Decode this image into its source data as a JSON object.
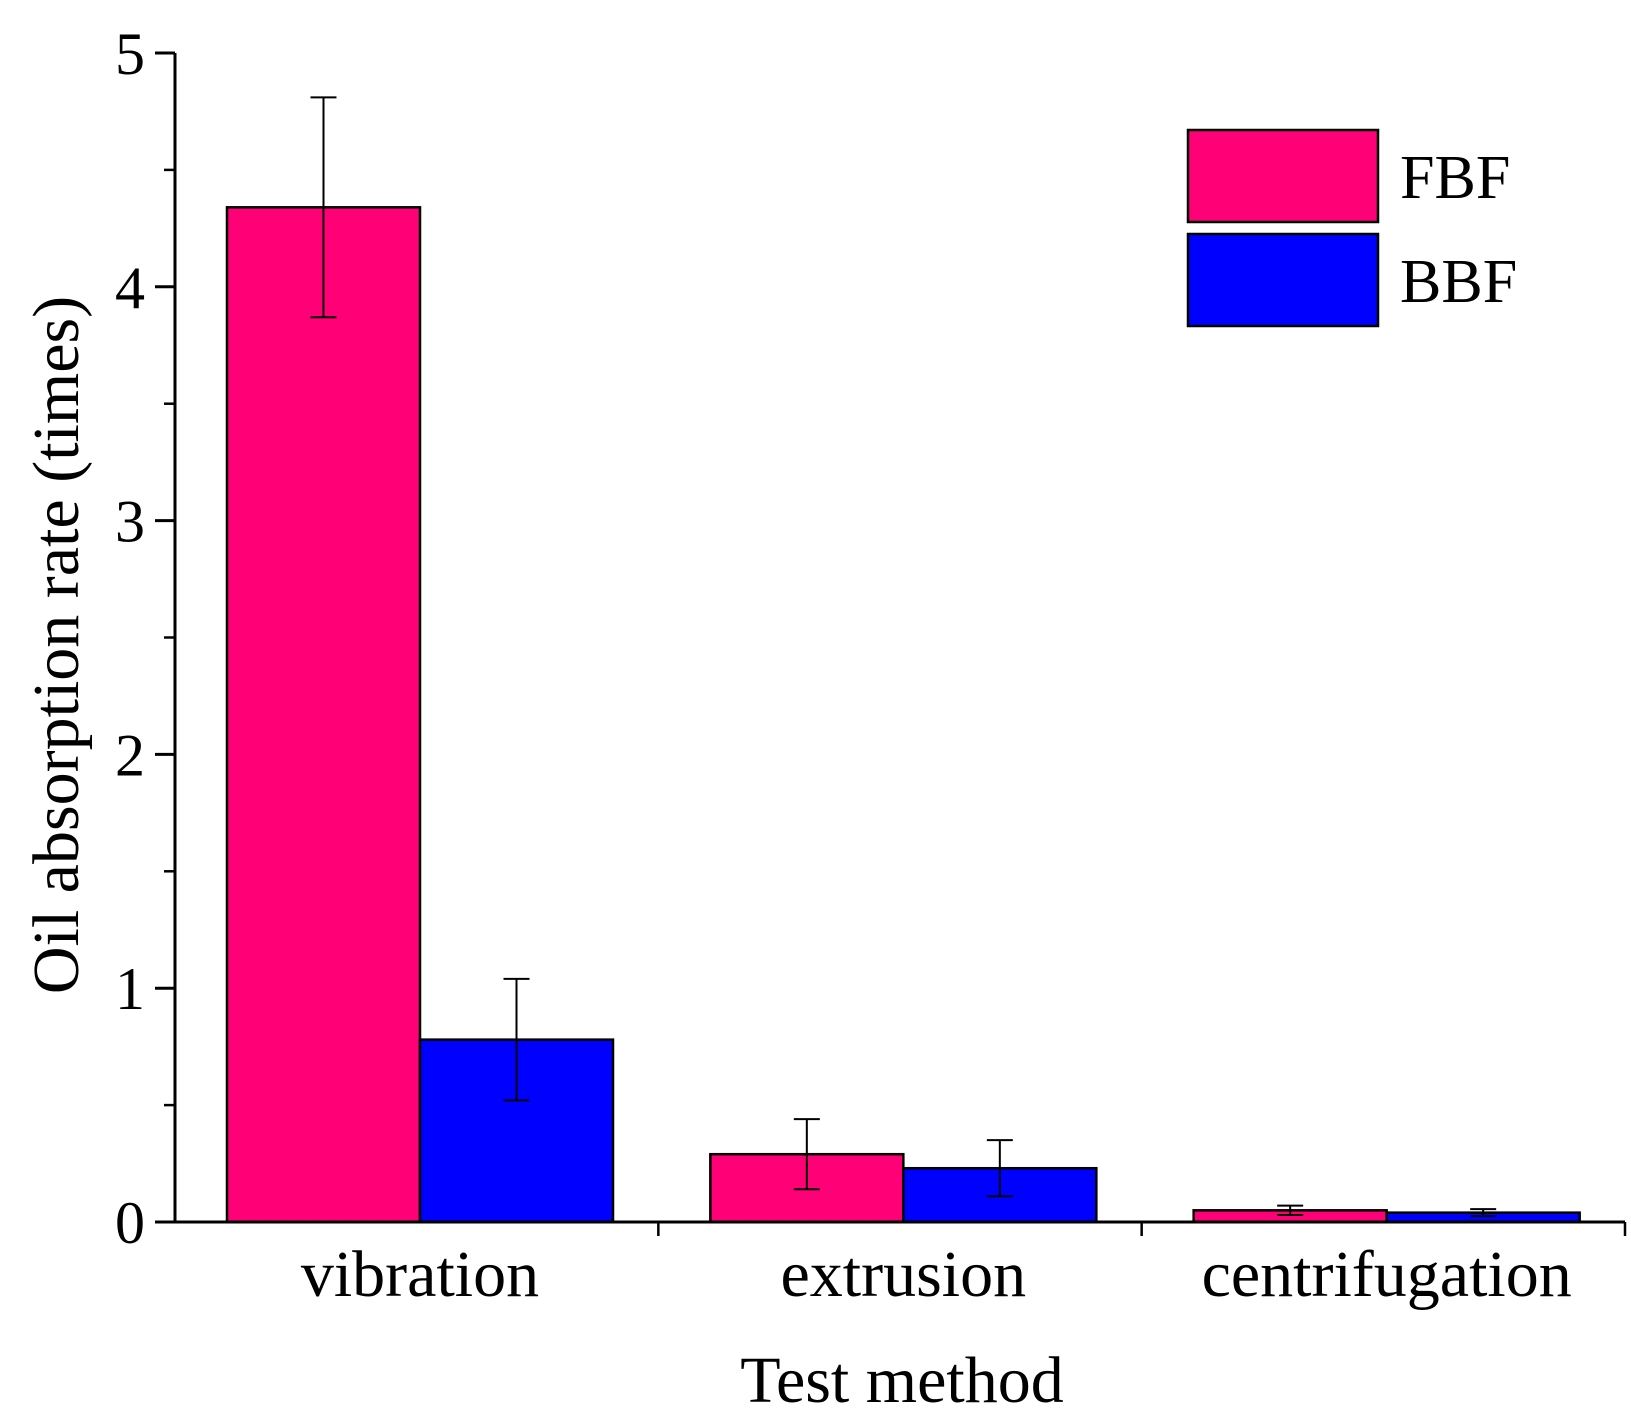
{
  "chart_data": {
    "type": "bar",
    "title": "",
    "xlabel": "Test method",
    "ylabel": "Oil absorption rate (times)",
    "categories": [
      "vibration",
      "extrusion",
      "centrifugation"
    ],
    "series": [
      {
        "name": "FBF",
        "color": "#ff0077",
        "values": [
          4.34,
          0.29,
          0.05
        ],
        "errors": [
          0.47,
          0.15,
          0.02
        ]
      },
      {
        "name": "BBF",
        "color": "#0000ff",
        "values": [
          0.78,
          0.23,
          0.04
        ],
        "errors": [
          0.26,
          0.12,
          0.015
        ]
      }
    ],
    "ylim": [
      0,
      5
    ],
    "yticks": [
      "0",
      "1",
      "2",
      "3",
      "4",
      "5"
    ],
    "grid": false,
    "legend_position": "top-right"
  }
}
